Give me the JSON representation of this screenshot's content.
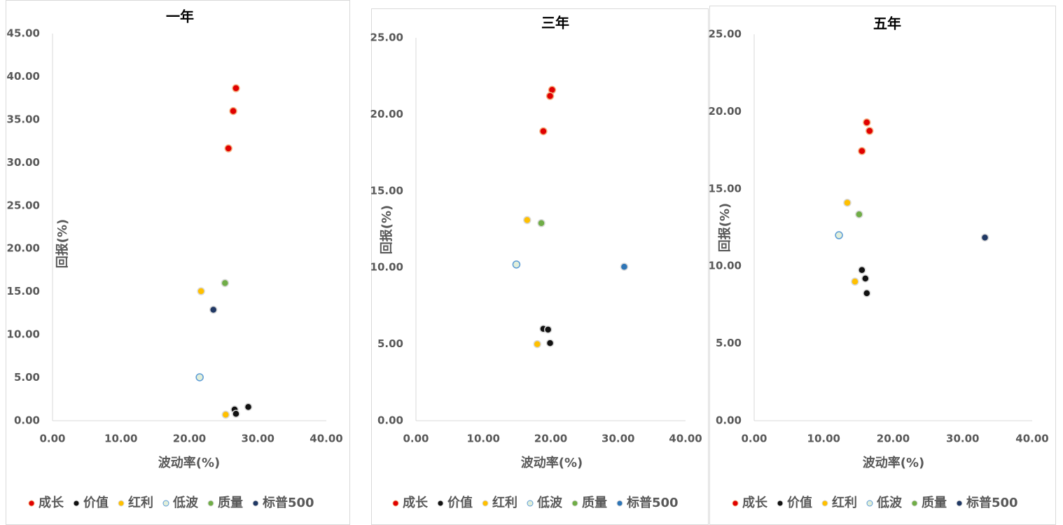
{
  "chart_data": [
    {
      "type": "scatter",
      "title": "一年",
      "xlabel": "波动率(%)",
      "ylabel": "回报(%)",
      "xlim": [
        0,
        40
      ],
      "xticks": [
        {
          "value": 0,
          "label": "0.00"
        },
        {
          "value": 10,
          "label": "10.00"
        },
        {
          "value": 20,
          "label": "20.00"
        },
        {
          "value": 30,
          "label": "30.00"
        },
        {
          "value": 40,
          "label": "40.00"
        }
      ],
      "ylim": [
        0,
        45
      ],
      "yticks": [
        {
          "value": 0,
          "label": "0.00"
        },
        {
          "value": 5,
          "label": "5.00"
        },
        {
          "value": 10,
          "label": "10.00"
        },
        {
          "value": 15,
          "label": "15.00"
        },
        {
          "value": 20,
          "label": "20.00"
        },
        {
          "value": 25,
          "label": "25.00"
        },
        {
          "value": 30,
          "label": "30.00"
        },
        {
          "value": 35,
          "label": "35.00"
        },
        {
          "value": 40,
          "label": "40.00"
        },
        {
          "value": 45,
          "label": "45.00"
        }
      ],
      "series": [
        {
          "name": "成长",
          "color": "#e00000",
          "x": [
            26.8,
            26.4,
            25.7
          ],
          "values": [
            38.65,
            36.0,
            31.65
          ]
        },
        {
          "name": "价值",
          "color": "#111111",
          "x": [
            26.6,
            28.6,
            26.8
          ],
          "values": [
            1.3,
            1.6,
            0.8
          ]
        },
        {
          "name": "红利",
          "color": "#ffc000",
          "x": [
            21.7,
            25.3
          ],
          "values": [
            15.05,
            0.7
          ]
        },
        {
          "name": "低波",
          "color": "#e2efda",
          "x": [
            21.5
          ],
          "values": [
            5.05
          ]
        },
        {
          "name": "质量",
          "color": "#70ad47",
          "x": [
            25.2
          ],
          "values": [
            16.0
          ]
        },
        {
          "name": "标普500",
          "color": "#203864",
          "x": [
            23.5
          ],
          "values": [
            12.9
          ]
        }
      ]
    },
    {
      "type": "scatter",
      "title": "三年",
      "xlabel": "波动率(%)",
      "ylabel": "回报(%)",
      "xlim": [
        0,
        40
      ],
      "xticks": [
        {
          "value": 0,
          "label": "0.00"
        },
        {
          "value": 10,
          "label": "10.00"
        },
        {
          "value": 20,
          "label": "20.00"
        },
        {
          "value": 30,
          "label": "30.00"
        },
        {
          "value": 40,
          "label": "40.00"
        }
      ],
      "ylim": [
        0,
        25
      ],
      "yticks": [
        {
          "value": 0,
          "label": "0.00"
        },
        {
          "value": 5,
          "label": "5.00"
        },
        {
          "value": 10,
          "label": "10.00"
        },
        {
          "value": 15,
          "label": "15.00"
        },
        {
          "value": 20,
          "label": "20.00"
        },
        {
          "value": 25,
          "label": "25.00"
        }
      ],
      "series": [
        {
          "name": "成长",
          "color": "#e00000",
          "x": [
            20.2,
            19.9,
            18.9
          ],
          "values": [
            21.6,
            21.2,
            18.9
          ]
        },
        {
          "name": "价值",
          "color": "#111111",
          "x": [
            18.9,
            19.6,
            19.9
          ],
          "values": [
            6.0,
            5.95,
            5.07
          ]
        },
        {
          "name": "红利",
          "color": "#ffc000",
          "x": [
            16.5,
            18.0
          ],
          "values": [
            13.1,
            5.0
          ]
        },
        {
          "name": "低波",
          "color": "#e2efda",
          "x": [
            14.9
          ],
          "values": [
            10.2
          ]
        },
        {
          "name": "质量",
          "color": "#70ad47",
          "x": [
            18.6
          ],
          "values": [
            12.9
          ]
        },
        {
          "name": "标普500",
          "color": "#2e75b6",
          "x": [
            30.9
          ],
          "values": [
            10.05
          ]
        }
      ]
    },
    {
      "type": "scatter",
      "title": "五年",
      "xlabel": "波动率(%)",
      "ylabel": "回报(%)",
      "xlim": [
        0,
        40
      ],
      "xticks": [
        {
          "value": 0,
          "label": "0.00"
        },
        {
          "value": 10,
          "label": "10.00"
        },
        {
          "value": 20,
          "label": "20.00"
        },
        {
          "value": 30,
          "label": "30.00"
        },
        {
          "value": 40,
          "label": "40.00"
        }
      ],
      "ylim": [
        0,
        25
      ],
      "yticks": [
        {
          "value": 0,
          "label": "0.00"
        },
        {
          "value": 5,
          "label": "5.00"
        },
        {
          "value": 10,
          "label": "10.00"
        },
        {
          "value": 15,
          "label": "15.00"
        },
        {
          "value": 20,
          "label": "20.00"
        },
        {
          "value": 25,
          "label": "25.00"
        }
      ],
      "series": [
        {
          "name": "成长",
          "color": "#e00000",
          "x": [
            16.2,
            16.6,
            15.5
          ],
          "values": [
            19.3,
            18.75,
            17.45
          ]
        },
        {
          "name": "价值",
          "color": "#111111",
          "x": [
            15.5,
            16.0,
            16.2
          ],
          "values": [
            9.75,
            9.2,
            8.25
          ]
        },
        {
          "name": "红利",
          "color": "#ffc000",
          "x": [
            13.4,
            14.5
          ],
          "values": [
            14.1,
            9.0
          ]
        },
        {
          "name": "低波",
          "color": "#e2efda",
          "x": [
            12.2
          ],
          "values": [
            12.0
          ]
        },
        {
          "name": "质量",
          "color": "#70ad47",
          "x": [
            15.1
          ],
          "values": [
            13.35
          ]
        },
        {
          "name": "标普500",
          "color": "#203864",
          "x": [
            33.2
          ],
          "values": [
            11.85
          ]
        }
      ]
    }
  ]
}
